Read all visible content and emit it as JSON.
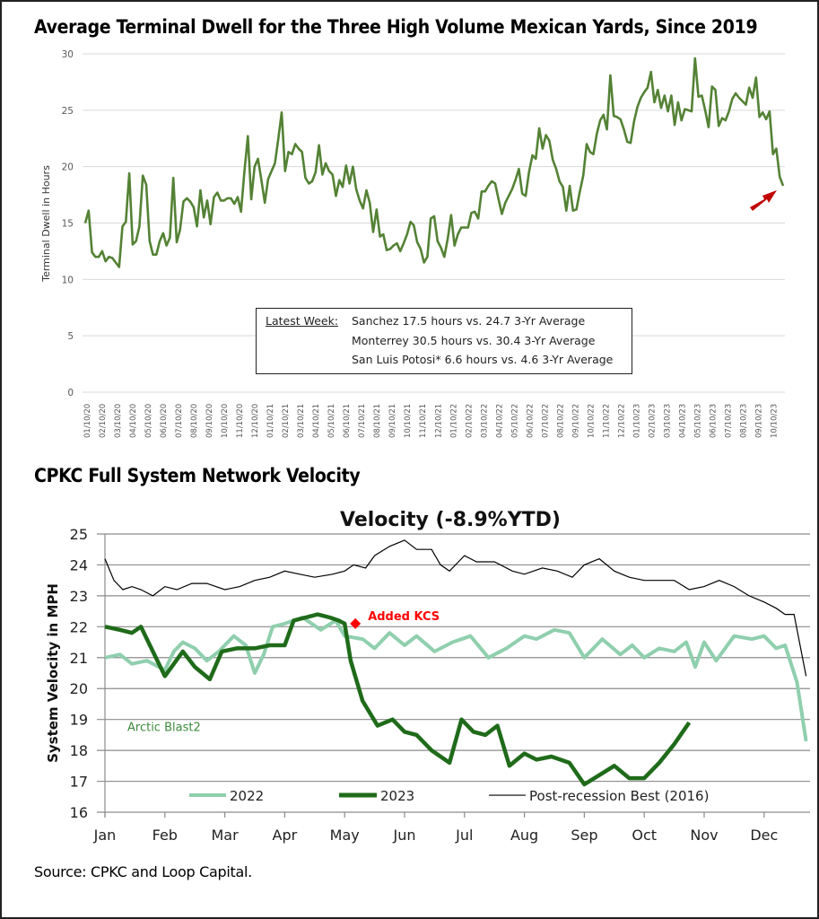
{
  "titles": {
    "top": "Average Terminal Dwell for the Three High Volume Mexican Yards, Since 2019",
    "bottom": "CPKC Full System Network Velocity"
  },
  "source": "Source: CPKC and Loop Capital.",
  "infobox": {
    "label": "Latest Week:",
    "lines": [
      "Sanchez 17.5 hours vs. 24.7 3-Yr Average",
      "Monterrey  30.5 hours vs. 30.4 3-Yr Average",
      "San Luis Potosi* 6.6 hours vs. 4.6 3-Yr Average"
    ]
  },
  "colors": {
    "dwell_line": "#548235",
    "arrow": "#c00000",
    "v2022": "#8fcfad",
    "v2023": "#1f6b1a",
    "v2016": "#000000",
    "kcs_marker": "#ff0000"
  },
  "chart_data": [
    {
      "type": "line",
      "title": "Average Terminal Dwell for the Three High Volume Mexican Yards, Since 2019",
      "xlabel": "",
      "ylabel": "Terminal Dwell in Hours",
      "ylim": [
        0,
        30
      ],
      "yticks": [
        "0",
        "5",
        "10",
        "15",
        "20",
        "25",
        "30"
      ],
      "grid": true,
      "xticks": [
        "01/10/20",
        "02/10/20",
        "03/10/20",
        "04/10/20",
        "05/10/20",
        "06/10/20",
        "07/10/20",
        "08/10/20",
        "09/10/20",
        "10/10/20",
        "11/10/20",
        "12/10/20",
        "01/10/21",
        "02/10/21",
        "03/10/21",
        "04/10/21",
        "05/10/21",
        "06/10/21",
        "07/10/21",
        "08/10/21",
        "09/10/21",
        "10/10/21",
        "11/10/21",
        "12/10/21",
        "01/10/22",
        "02/10/22",
        "03/10/22",
        "04/10/22",
        "05/10/22",
        "06/10/22",
        "07/10/22",
        "08/10/22",
        "09/10/22",
        "10/10/22",
        "11/10/22",
        "12/10/22",
        "01/10/23",
        "02/10/23",
        "03/10/23",
        "04/10/23",
        "05/10/23",
        "06/10/23",
        "07/10/23",
        "08/10/23",
        "09/10/23",
        "10/10/23"
      ],
      "annotation": "red arrow pointing to latest value",
      "series": [
        {
          "name": "Average Terminal Dwell",
          "values": [
            15.0,
            16.1,
            12.4,
            12.0,
            12.0,
            12.5,
            11.6,
            12.0,
            11.9,
            11.5,
            11.1,
            14.7,
            15.1,
            19.4,
            13.1,
            13.4,
            14.7,
            19.2,
            18.4,
            13.4,
            12.2,
            12.2,
            13.4,
            14.1,
            13.0,
            13.7,
            19.0,
            13.3,
            14.4,
            16.9,
            17.2,
            16.9,
            16.4,
            14.7,
            17.9,
            15.5,
            17.0,
            14.9,
            17.3,
            17.7,
            17.0,
            17.0,
            17.2,
            17.2,
            16.7,
            17.3,
            16.0,
            19.6,
            22.7,
            17.1,
            20.0,
            20.7,
            18.8,
            16.8,
            18.9,
            19.6,
            20.3,
            22.5,
            24.8,
            19.6,
            21.3,
            21.1,
            22.0,
            21.6,
            21.3,
            19.0,
            18.5,
            18.7,
            19.5,
            21.9,
            19.3,
            20.3,
            19.6,
            19.3,
            17.4,
            18.8,
            18.2,
            20.1,
            18.5,
            20.0,
            18.0,
            17.0,
            16.3,
            17.9,
            16.8,
            14.2,
            16.2,
            13.8,
            14.0,
            12.6,
            12.7,
            13.0,
            13.2,
            12.5,
            13.2,
            14.0,
            15.1,
            14.8,
            13.3,
            12.7,
            11.5,
            12.0,
            15.4,
            15.6,
            13.4,
            12.8,
            12.0,
            13.6,
            15.7,
            13.0,
            14.0,
            14.6,
            14.6,
            14.6,
            15.9,
            16.0,
            15.4,
            17.8,
            17.8,
            18.3,
            18.7,
            18.5,
            17.1,
            15.8,
            16.8,
            17.4,
            18.0,
            18.8,
            19.8,
            17.6,
            17.4,
            19.5,
            21.0,
            20.7,
            23.4,
            21.6,
            22.8,
            22.3,
            20.6,
            19.8,
            18.7,
            18.2,
            16.1,
            18.3,
            16.1,
            16.2,
            17.8,
            19.2,
            22.0,
            21.3,
            21.1,
            22.9,
            24.1,
            24.6,
            23.3,
            28.1,
            24.5,
            24.4,
            24.2,
            23.3,
            22.2,
            22.1,
            24.0,
            25.3,
            26.1,
            26.6,
            27.0,
            28.4,
            25.7,
            26.8,
            25.2,
            26.3,
            24.9,
            26.3,
            23.7,
            25.7,
            24.1,
            25.1,
            25.0,
            24.9,
            29.6,
            26.2,
            26.3,
            25.0,
            23.5,
            27.1,
            26.8,
            23.6,
            24.3,
            24.1,
            24.9,
            26.0,
            26.5,
            26.1,
            25.8,
            25.5,
            27.0,
            26.1,
            27.9,
            24.4,
            24.8,
            24.2,
            24.9,
            21.1,
            21.6,
            19.1,
            18.3
          ]
        }
      ]
    },
    {
      "type": "line",
      "title": "Velocity (-8.9%YTD)",
      "xlabel": "",
      "ylabel": "System Velocity in MPH",
      "ylim": [
        16,
        25
      ],
      "yticks": [
        "16",
        "17",
        "18",
        "19",
        "20",
        "21",
        "22",
        "23",
        "24",
        "25"
      ],
      "grid": true,
      "categories": [
        "Jan",
        "Feb",
        "Mar",
        "Apr",
        "May",
        "Jun",
        "Jul",
        "Aug",
        "Sep",
        "Oct",
        "Nov",
        "Dec"
      ],
      "legend": {
        "placement": "bottom-inside",
        "entries": [
          "2022",
          "2023",
          "Post-recession Best (2016)"
        ]
      },
      "annotations": [
        {
          "text": "Added KCS",
          "x_month": 4.0,
          "y": 22.1
        },
        {
          "text": "Arctic Blast2",
          "x_month": 0.2,
          "y": 18.8
        }
      ],
      "series": [
        {
          "name": "2022",
          "x_month": [
            0.0,
            0.25,
            0.45,
            0.7,
            1.0,
            1.15,
            1.3,
            1.5,
            1.7,
            1.9,
            2.15,
            2.35,
            2.5,
            2.65,
            2.8,
            3.0,
            3.3,
            3.6,
            3.85,
            4.0,
            4.3,
            4.5,
            4.75,
            5.0,
            5.2,
            5.5,
            5.8,
            6.1,
            6.4,
            6.7,
            7.0,
            7.2,
            7.5,
            7.75,
            8.0,
            8.3,
            8.6,
            8.8,
            9.0,
            9.25,
            9.5,
            9.7,
            9.85,
            10.0,
            10.2,
            10.5,
            10.8,
            11.0,
            11.2,
            11.35,
            11.55,
            11.7
          ],
          "values": [
            21.0,
            21.1,
            20.8,
            20.9,
            20.6,
            21.2,
            21.5,
            21.3,
            20.9,
            21.2,
            21.7,
            21.4,
            20.5,
            21.1,
            22.0,
            22.1,
            22.3,
            21.9,
            22.2,
            21.7,
            21.6,
            21.3,
            21.8,
            21.4,
            21.7,
            21.2,
            21.5,
            21.7,
            21.0,
            21.3,
            21.7,
            21.6,
            21.9,
            21.8,
            21.0,
            21.6,
            21.1,
            21.4,
            21.0,
            21.3,
            21.2,
            21.5,
            20.7,
            21.5,
            20.9,
            21.7,
            21.6,
            21.7,
            21.3,
            21.4,
            20.2,
            18.3
          ]
        },
        {
          "name": "2023",
          "x_month": [
            0.0,
            0.25,
            0.45,
            0.6,
            0.75,
            1.0,
            1.15,
            1.3,
            1.5,
            1.75,
            1.95,
            2.2,
            2.5,
            2.75,
            3.0,
            3.15,
            3.35,
            3.55,
            3.75,
            3.9,
            4.0,
            4.1,
            4.3,
            4.55,
            4.8,
            5.0,
            5.2,
            5.45,
            5.75,
            5.95,
            6.15,
            6.35,
            6.55,
            6.75,
            7.0,
            7.2,
            7.45,
            7.75,
            8.0,
            8.25,
            8.5,
            8.75,
            9.0,
            9.25,
            9.5,
            9.75
          ],
          "values": [
            22.0,
            21.9,
            21.8,
            22.0,
            21.4,
            20.4,
            20.8,
            21.2,
            20.7,
            20.3,
            21.2,
            21.3,
            21.3,
            21.4,
            21.4,
            22.2,
            22.3,
            22.4,
            22.3,
            22.2,
            22.1,
            20.9,
            19.6,
            18.8,
            19.0,
            18.6,
            18.5,
            18.0,
            17.6,
            19.0,
            18.6,
            18.5,
            18.8,
            17.5,
            17.9,
            17.7,
            17.8,
            17.6,
            16.9,
            17.2,
            17.5,
            17.1,
            17.1,
            17.6,
            18.2,
            18.9
          ]
        },
        {
          "name": "Post-recession Best (2016)",
          "x_month": [
            0.0,
            0.15,
            0.3,
            0.45,
            0.6,
            0.8,
            1.0,
            1.2,
            1.45,
            1.7,
            2.0,
            2.25,
            2.5,
            2.75,
            3.0,
            3.25,
            3.5,
            3.8,
            4.0,
            4.15,
            4.35,
            4.5,
            4.75,
            5.0,
            5.2,
            5.45,
            5.6,
            5.75,
            6.0,
            6.2,
            6.5,
            6.8,
            7.0,
            7.3,
            7.55,
            7.8,
            8.0,
            8.25,
            8.5,
            8.75,
            9.0,
            9.25,
            9.5,
            9.75,
            10.0,
            10.25,
            10.5,
            10.75,
            11.0,
            11.2,
            11.35,
            11.5,
            11.7
          ],
          "values": [
            24.2,
            23.5,
            23.2,
            23.3,
            23.2,
            23.0,
            23.3,
            23.2,
            23.4,
            23.4,
            23.2,
            23.3,
            23.5,
            23.6,
            23.8,
            23.7,
            23.6,
            23.7,
            23.8,
            24.0,
            23.9,
            24.3,
            24.6,
            24.8,
            24.5,
            24.5,
            24.0,
            23.8,
            24.3,
            24.1,
            24.1,
            23.8,
            23.7,
            23.9,
            23.8,
            23.6,
            24.0,
            24.2,
            23.8,
            23.6,
            23.5,
            23.5,
            23.5,
            23.2,
            23.3,
            23.5,
            23.3,
            23.0,
            22.8,
            22.6,
            22.4,
            22.4,
            20.4
          ]
        }
      ]
    }
  ]
}
